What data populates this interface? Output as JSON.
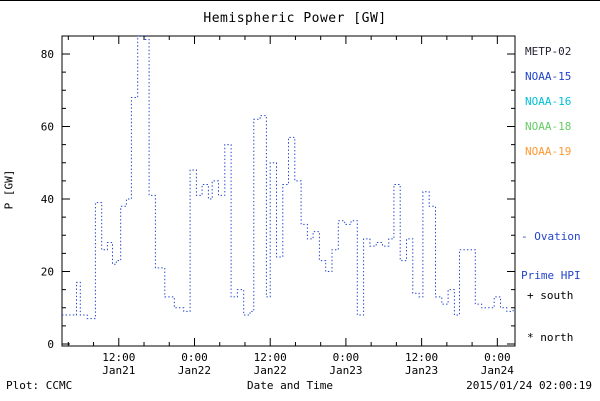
{
  "title": "Hemispheric Power [GW]",
  "ylabel": "P [GW]",
  "xlabel": "Date and Time",
  "footer_left": "Plot: CCMC",
  "footer_right": "2015/01/24 02:00:19",
  "legend": {
    "satellites": [
      {
        "label": "METP-02",
        "color": "#222233"
      },
      {
        "label": "NOAA-15",
        "color": "#2244cc"
      },
      {
        "label": "NOAA-16",
        "color": "#00c0d8"
      },
      {
        "label": "NOAA-18",
        "color": "#66cc66"
      },
      {
        "label": "NOAA-19",
        "color": "#ff9933"
      }
    ],
    "ovation_line1": "- Ovation",
    "ovation_line2": "Prime HPI",
    "ovation_color": "#2244cc",
    "south_label": "+ south",
    "north_label": "* north"
  },
  "chart_data": {
    "type": "line",
    "style": "dotted-step",
    "line_color": "#2244cc",
    "title": "Hemispheric Power [GW]",
    "xlabel": "Date and Time",
    "ylabel": "P [GW]",
    "ylim": [
      0,
      85
    ],
    "yticks": [
      0,
      20,
      40,
      60,
      80
    ],
    "y_minor_step": 5,
    "x_minor_step_hours": 4,
    "x_range_hours": [
      3,
      74.8
    ],
    "xticks": [
      {
        "t": 12,
        "line1": "12:00",
        "line2": "Jan21"
      },
      {
        "t": 24,
        "line1": "0:00",
        "line2": "Jan22"
      },
      {
        "t": 36,
        "line1": "12:00",
        "line2": "Jan22"
      },
      {
        "t": 48,
        "line1": "0:00",
        "line2": "Jan23"
      },
      {
        "t": 60,
        "line1": "12:00",
        "line2": "Jan23"
      },
      {
        "t": 72,
        "line1": "0:00",
        "line2": "Jan24"
      }
    ],
    "points_t_hours_from_jan21_0000_vs_gw": [
      [
        3.0,
        8
      ],
      [
        5.3,
        17
      ],
      [
        5.9,
        8
      ],
      [
        7.0,
        7
      ],
      [
        8.3,
        39
      ],
      [
        9.3,
        26
      ],
      [
        10.2,
        28
      ],
      [
        11.0,
        22
      ],
      [
        11.6,
        23
      ],
      [
        12.3,
        38
      ],
      [
        13.2,
        40
      ],
      [
        14.0,
        68
      ],
      [
        15.0,
        85
      ],
      [
        16.2,
        84
      ],
      [
        16.8,
        41
      ],
      [
        17.8,
        21
      ],
      [
        19.3,
        13
      ],
      [
        20.8,
        10
      ],
      [
        22.3,
        9
      ],
      [
        23.3,
        48
      ],
      [
        24.3,
        41
      ],
      [
        25.2,
        44
      ],
      [
        26.2,
        40
      ],
      [
        26.8,
        45
      ],
      [
        27.8,
        41
      ],
      [
        28.8,
        55
      ],
      [
        29.8,
        13
      ],
      [
        30.8,
        15
      ],
      [
        31.8,
        8
      ],
      [
        32.8,
        9
      ],
      [
        33.4,
        62
      ],
      [
        34.4,
        63
      ],
      [
        35.4,
        13
      ],
      [
        36.0,
        50
      ],
      [
        37.0,
        24
      ],
      [
        38.0,
        44
      ],
      [
        38.9,
        57
      ],
      [
        39.9,
        45
      ],
      [
        40.9,
        33
      ],
      [
        41.9,
        29
      ],
      [
        42.8,
        31
      ],
      [
        43.8,
        23
      ],
      [
        44.8,
        20
      ],
      [
        45.8,
        26
      ],
      [
        46.8,
        34
      ],
      [
        47.8,
        33
      ],
      [
        48.8,
        34
      ],
      [
        49.8,
        8
      ],
      [
        50.8,
        29
      ],
      [
        51.8,
        27
      ],
      [
        52.8,
        28
      ],
      [
        53.8,
        27
      ],
      [
        54.8,
        29
      ],
      [
        55.6,
        44
      ],
      [
        56.6,
        23
      ],
      [
        57.6,
        29
      ],
      [
        58.6,
        14
      ],
      [
        59.6,
        13
      ],
      [
        60.2,
        42
      ],
      [
        61.2,
        38
      ],
      [
        62.2,
        13
      ],
      [
        63.2,
        11
      ],
      [
        64.2,
        15
      ],
      [
        65.2,
        8
      ],
      [
        66.0,
        26
      ],
      [
        67.5,
        26
      ],
      [
        68.5,
        11
      ],
      [
        69.5,
        10
      ],
      [
        70.5,
        10
      ],
      [
        71.5,
        13
      ],
      [
        72.5,
        10
      ],
      [
        73.5,
        9
      ],
      [
        74.5,
        10
      ]
    ]
  }
}
